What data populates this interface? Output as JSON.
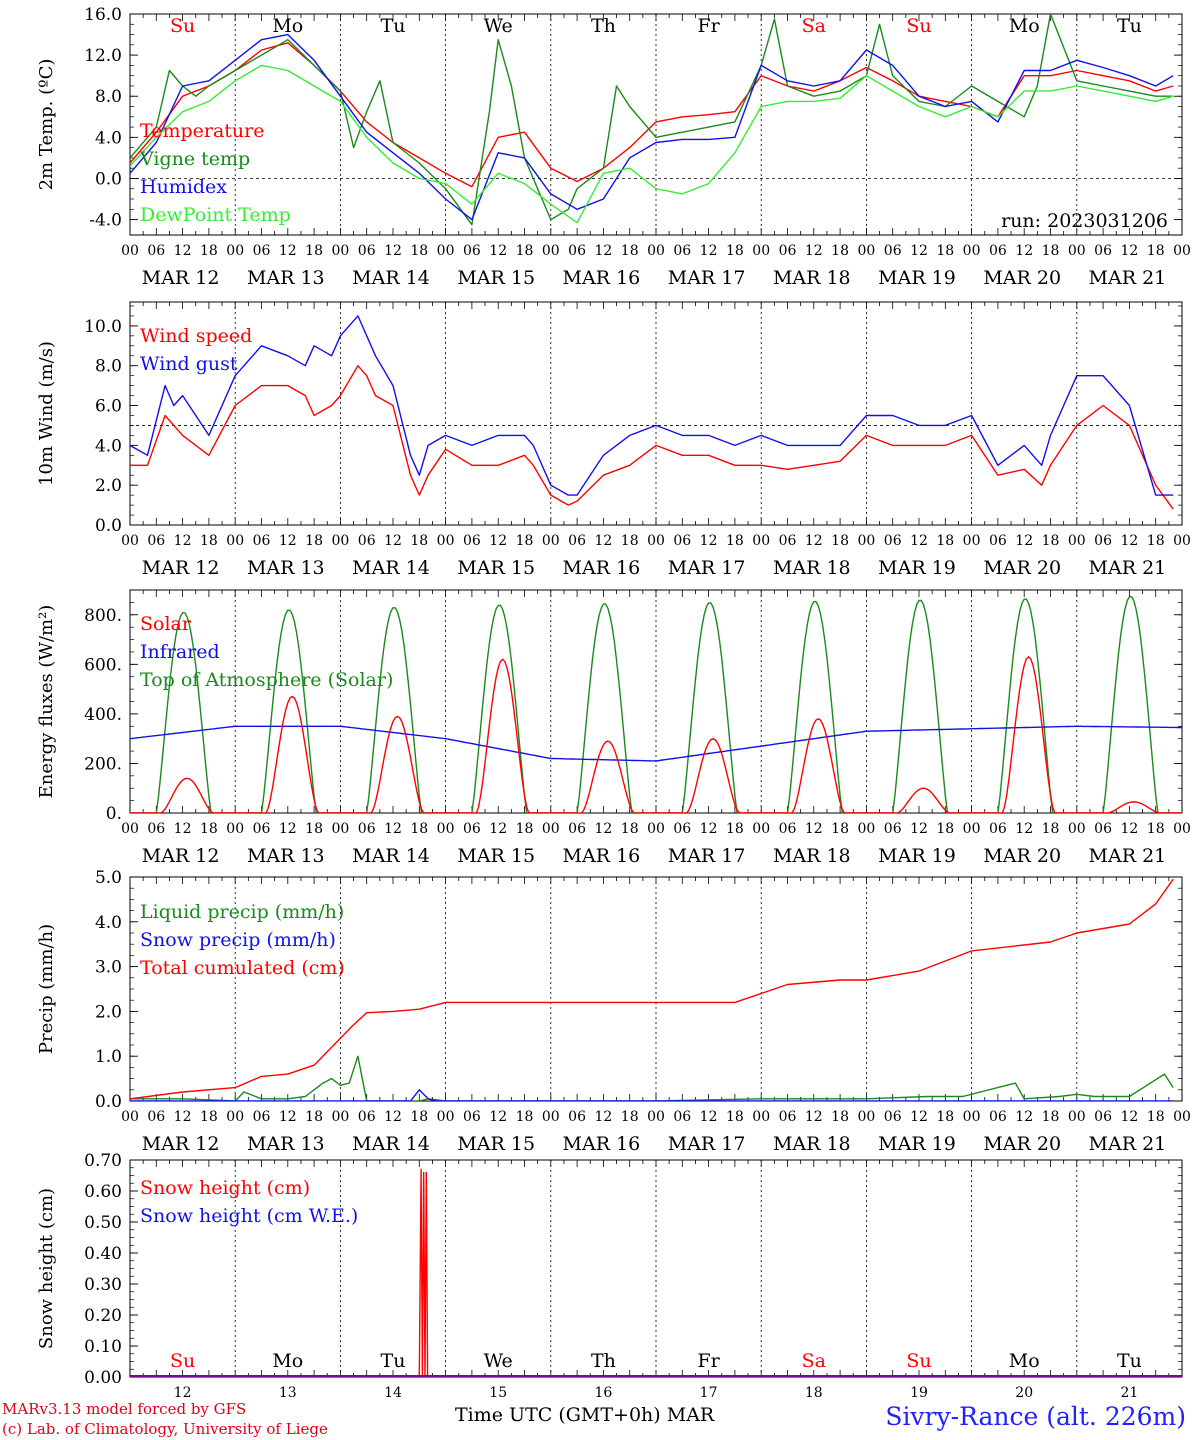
{
  "meteogram": {
    "run_label": "run: 2023031206",
    "x_axis": {
      "hour_ticks": [
        "00",
        "06",
        "12",
        "18"
      ],
      "day_labels": [
        "MAR 12",
        "MAR 13",
        "MAR 14",
        "MAR 15",
        "MAR 16",
        "MAR 17",
        "MAR 18",
        "MAR 19",
        "MAR 20",
        "MAR 21"
      ],
      "weekday_labels": [
        "Su",
        "Mo",
        "Tu",
        "We",
        "Th",
        "Fr",
        "Sa",
        "Su",
        "Mo",
        "Tu"
      ],
      "weekend_flags": [
        true,
        false,
        false,
        false,
        false,
        false,
        true,
        true,
        false,
        false
      ],
      "day_numbers": [
        "12",
        "13",
        "14",
        "15",
        "16",
        "17",
        "18",
        "19",
        "20",
        "21"
      ],
      "title": "Time UTC (GMT+0h)",
      "month": "MAR"
    },
    "credits": {
      "model": "MARv3.13 model forced by GFS",
      "lab": "(c) Lab. of Climatology, University of Liege"
    },
    "station": "Sivry-Rance (alt. 226m)",
    "colors": {
      "red": "#ff0000",
      "green": "#1a8a1a",
      "blue": "#1010ee",
      "light_green": "#33ee33",
      "purple": "#8000a0"
    }
  },
  "chart_data": [
    {
      "type": "line",
      "ylabel": "2m Temp. (ºC)",
      "ylim": [
        -5.5,
        16
      ],
      "yticks": [
        "-4.0",
        "0.0",
        "4.0",
        "8.0",
        "12.0",
        "16.0"
      ],
      "reference_line": 0,
      "x_unit": "hours since MAR 12 00 UTC",
      "series": [
        {
          "name": "Temperature",
          "color": "red",
          "x": [
            0,
            6,
            12,
            18,
            24,
            30,
            36,
            42,
            48,
            54,
            60,
            66,
            72,
            78,
            84,
            90,
            96,
            102,
            108,
            114,
            120,
            126,
            132,
            138,
            144,
            150,
            156,
            162,
            168,
            174,
            180,
            186,
            192,
            198,
            204,
            210,
            216,
            222,
            228,
            234,
            238
          ],
          "y": [
            1.5,
            4.5,
            8.0,
            9.0,
            10.5,
            12.5,
            13.2,
            11.0,
            8.5,
            5.5,
            3.5,
            2.0,
            0.5,
            -0.8,
            4.0,
            4.5,
            1.0,
            -0.3,
            1.0,
            3.0,
            5.5,
            6.0,
            6.2,
            6.5,
            10.0,
            9.0,
            8.5,
            9.5,
            10.8,
            9.5,
            8.0,
            7.5,
            7.0,
            6.0,
            10.0,
            10.0,
            10.5,
            10.0,
            9.5,
            8.5,
            9.0
          ]
        },
        {
          "name": "Vigne temp",
          "color": "green",
          "x": [
            0,
            6,
            9,
            12,
            15,
            18,
            24,
            30,
            36,
            42,
            48,
            51,
            54,
            57,
            60,
            66,
            72,
            78,
            82,
            84,
            87,
            90,
            93,
            96,
            100,
            102,
            108,
            111,
            114,
            120,
            126,
            132,
            138,
            144,
            147,
            150,
            156,
            162,
            168,
            171,
            174,
            180,
            186,
            192,
            198,
            204,
            207,
            210,
            216,
            222,
            228,
            234,
            238
          ],
          "y": [
            2.0,
            5.0,
            10.5,
            9.0,
            8.0,
            9.0,
            10.5,
            12.0,
            13.5,
            11.0,
            8.5,
            3.0,
            6.5,
            9.5,
            3.5,
            1.5,
            -1.0,
            -4.5,
            6.5,
            13.5,
            9.0,
            2.0,
            -1.0,
            -4.0,
            -3.0,
            -1.0,
            1.0,
            9.0,
            7.0,
            4.0,
            4.5,
            5.0,
            5.5,
            11.0,
            15.5,
            9.0,
            8.0,
            8.5,
            10.0,
            15.0,
            10.0,
            7.5,
            7.0,
            9.0,
            7.5,
            6.0,
            9.0,
            16.0,
            9.5,
            9.0,
            8.5,
            8.0,
            8.0
          ]
        },
        {
          "name": "Humidex",
          "color": "blue",
          "x": [
            0,
            6,
            12,
            18,
            24,
            30,
            36,
            42,
            48,
            54,
            60,
            66,
            72,
            78,
            84,
            90,
            96,
            102,
            108,
            114,
            120,
            126,
            132,
            138,
            144,
            150,
            156,
            162,
            168,
            174,
            180,
            186,
            192,
            198,
            204,
            210,
            216,
            222,
            228,
            234,
            238
          ],
          "y": [
            0.5,
            3.5,
            9.0,
            9.5,
            11.5,
            13.5,
            14.0,
            11.5,
            8.0,
            4.5,
            2.5,
            0.5,
            -2.0,
            -4.0,
            2.5,
            2.0,
            -1.5,
            -3.0,
            -2.0,
            2.0,
            3.5,
            3.8,
            3.8,
            4.0,
            11.0,
            9.5,
            9.0,
            9.5,
            12.5,
            11.0,
            8.0,
            7.0,
            7.5,
            5.5,
            10.5,
            10.5,
            11.5,
            10.8,
            10.0,
            9.0,
            10.0
          ]
        },
        {
          "name": "DewPoint Temp",
          "color": "light_green",
          "x": [
            0,
            6,
            12,
            18,
            24,
            30,
            36,
            42,
            48,
            54,
            60,
            66,
            72,
            78,
            84,
            90,
            96,
            102,
            108,
            114,
            120,
            126,
            132,
            138,
            144,
            150,
            156,
            162,
            168,
            174,
            180,
            186,
            192,
            198,
            204,
            210,
            216,
            222,
            228,
            234,
            238
          ],
          "y": [
            1.2,
            4.0,
            6.5,
            7.5,
            9.5,
            11.0,
            10.5,
            9.0,
            7.5,
            4.0,
            1.5,
            0.0,
            -0.5,
            -2.5,
            0.5,
            -0.5,
            -2.5,
            -4.3,
            0.5,
            1.0,
            -1.0,
            -1.5,
            -0.5,
            2.5,
            7.0,
            7.5,
            7.5,
            7.8,
            10.0,
            8.5,
            7.0,
            6.0,
            7.0,
            6.0,
            8.5,
            8.5,
            9.0,
            8.5,
            8.0,
            7.5,
            8.0
          ]
        }
      ]
    },
    {
      "type": "line",
      "ylabel": "10m Wind (m/s)",
      "ylim": [
        0,
        11.2
      ],
      "yticks": [
        "0.0",
        "2.0",
        "4.0",
        "6.0",
        "8.0",
        "10.0"
      ],
      "reference_line": 5,
      "x_unit": "hours since MAR 12 00 UTC",
      "series": [
        {
          "name": "Wind speed",
          "color": "red",
          "x": [
            0,
            4,
            8,
            12,
            15,
            18,
            24,
            30,
            36,
            40,
            42,
            46,
            48,
            52,
            54,
            56,
            60,
            64,
            66,
            68,
            72,
            78,
            84,
            90,
            92,
            96,
            100,
            102,
            108,
            114,
            120,
            126,
            132,
            138,
            144,
            150,
            156,
            162,
            168,
            174,
            180,
            186,
            192,
            198,
            204,
            208,
            210,
            216,
            222,
            228,
            234,
            238
          ],
          "y": [
            3.0,
            3.0,
            5.5,
            4.5,
            4.0,
            3.5,
            6.0,
            7.0,
            7.0,
            6.5,
            5.5,
            6.0,
            6.5,
            8.0,
            7.5,
            6.5,
            6.0,
            2.5,
            1.5,
            2.5,
            3.8,
            3.0,
            3.0,
            3.5,
            3.0,
            1.5,
            1.0,
            1.2,
            2.5,
            3.0,
            4.0,
            3.5,
            3.5,
            3.0,
            3.0,
            2.8,
            3.0,
            3.2,
            4.5,
            4.0,
            4.0,
            4.0,
            4.5,
            2.5,
            2.8,
            2.0,
            3.0,
            5.0,
            6.0,
            5.0,
            2.0,
            0.8
          ]
        },
        {
          "name": "Wind gust",
          "color": "blue",
          "x": [
            0,
            4,
            8,
            10,
            12,
            15,
            18,
            24,
            30,
            36,
            40,
            42,
            46,
            48,
            52,
            54,
            56,
            60,
            64,
            66,
            68,
            72,
            78,
            84,
            90,
            92,
            96,
            100,
            102,
            108,
            114,
            120,
            126,
            132,
            138,
            144,
            150,
            156,
            162,
            168,
            174,
            180,
            186,
            192,
            198,
            204,
            208,
            210,
            216,
            222,
            228,
            234,
            238
          ],
          "y": [
            4.0,
            3.5,
            7.0,
            6.0,
            6.5,
            5.5,
            4.5,
            7.5,
            9.0,
            8.5,
            8.0,
            9.0,
            8.5,
            9.5,
            10.5,
            9.5,
            8.5,
            7.0,
            3.5,
            2.5,
            4.0,
            4.5,
            4.0,
            4.5,
            4.5,
            4.0,
            2.0,
            1.5,
            1.5,
            3.5,
            4.5,
            5.0,
            4.5,
            4.5,
            4.0,
            4.5,
            4.0,
            4.0,
            4.0,
            5.5,
            5.5,
            5.0,
            5.0,
            5.5,
            3.0,
            4.0,
            3.0,
            4.5,
            7.5,
            7.5,
            6.0,
            1.5,
            1.5
          ]
        }
      ]
    },
    {
      "type": "line",
      "ylabel": "Energy fluxes (W/m²)",
      "ylim": [
        0,
        900
      ],
      "yticks": [
        "0.",
        "200.",
        "400.",
        "600.",
        "800."
      ],
      "x_unit": "hours since MAR 12 00 UTC",
      "toa_peaks": [
        810,
        820,
        830,
        840,
        845,
        850,
        855,
        860,
        865,
        875
      ],
      "solar_peaks": [
        140,
        470,
        390,
        620,
        290,
        300,
        380,
        100,
        630,
        45
      ],
      "infrared_level": [
        300,
        350,
        350,
        300,
        220,
        210,
        270,
        330,
        340,
        350,
        345
      ],
      "series": [
        {
          "name": "Solar",
          "color": "red",
          "values_note": "daily peaks listed in solar_peaks"
        },
        {
          "name": "Infrared",
          "color": "blue",
          "values_note": "daily levels listed in infrared_level"
        },
        {
          "name": "Top of Atmosphere (Solar)",
          "color": "green",
          "values_note": "daily peaks listed in toa_peaks"
        }
      ]
    },
    {
      "type": "line",
      "ylabel": "Precip (mm/h)",
      "ylim": [
        0,
        5.0
      ],
      "yticks": [
        "0.0",
        "1.0",
        "2.0",
        "3.0",
        "4.0",
        "5.0"
      ],
      "x_unit": "hours since MAR 12 00 UTC",
      "series": [
        {
          "name": "Liquid precip (mm/h)",
          "color": "green",
          "x": [
            0,
            12,
            24,
            26,
            30,
            36,
            40,
            44,
            46,
            48,
            50,
            52,
            54,
            58,
            66,
            68,
            72,
            120,
            144,
            168,
            182,
            190,
            202,
            204,
            212,
            216,
            220,
            228,
            236,
            238
          ],
          "y": [
            0.05,
            0.05,
            0.0,
            0.2,
            0.05,
            0.05,
            0.1,
            0.4,
            0.5,
            0.35,
            0.4,
            1.0,
            0.0,
            0.0,
            0.0,
            0.05,
            0.0,
            0.0,
            0.05,
            0.05,
            0.1,
            0.1,
            0.4,
            0.05,
            0.1,
            0.15,
            0.1,
            0.1,
            0.6,
            0.3
          ]
        },
        {
          "name": "Snow precip (mm/h)",
          "color": "blue",
          "x": [
            0,
            64,
            66,
            68,
            70,
            238
          ],
          "y": [
            0.0,
            0.0,
            0.25,
            0.05,
            0.0,
            0.0
          ]
        },
        {
          "name": "Total cumulated (cm)",
          "color": "red",
          "x": [
            0,
            12,
            24,
            30,
            36,
            42,
            48,
            51,
            54,
            60,
            66,
            72,
            120,
            138,
            150,
            162,
            168,
            180,
            192,
            210,
            216,
            228,
            234,
            238
          ],
          "y": [
            0.05,
            0.2,
            0.3,
            0.55,
            0.6,
            0.8,
            1.4,
            1.7,
            1.97,
            2.0,
            2.05,
            2.2,
            2.2,
            2.2,
            2.6,
            2.7,
            2.7,
            2.9,
            3.35,
            3.55,
            3.75,
            3.95,
            4.4,
            4.95
          ]
        }
      ]
    },
    {
      "type": "line",
      "ylabel": "Snow height (cm)",
      "ylim": [
        0,
        0.7
      ],
      "yticks": [
        "0.00",
        "0.10",
        "0.20",
        "0.30",
        "0.40",
        "0.50",
        "0.60",
        "0.70"
      ],
      "x_unit": "hours since MAR 12 00 UTC",
      "series": [
        {
          "name": "Snow height (cm)",
          "color": "red",
          "x": [
            0,
            66.0,
            66.4,
            66.7,
            67.0,
            67.3,
            67.6,
            67.9,
            68.2,
            238
          ],
          "y": [
            0,
            0,
            0.67,
            0,
            0.66,
            0,
            0.66,
            0,
            0,
            0
          ]
        },
        {
          "name": "Snow height (cm W.E.)",
          "color": "blue",
          "x": [
            0,
            238
          ],
          "y": [
            0,
            0
          ]
        }
      ]
    }
  ]
}
